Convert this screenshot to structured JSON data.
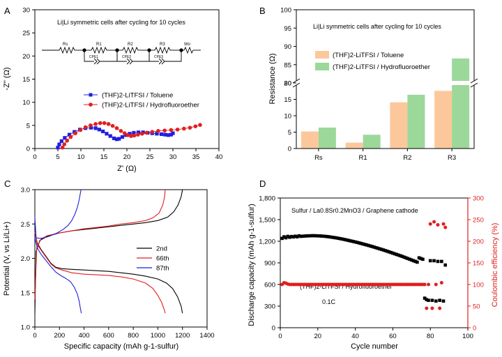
{
  "panels": {
    "A": {
      "letter": "A",
      "note": "Li|Li symmetric cells after cycling for 10 cycles",
      "circuit": {
        "labels": [
          "Rs",
          "R1",
          "CPE1",
          "R2",
          "CPE2",
          "R3",
          "CPE3",
          "Wo"
        ]
      }
    },
    "B": {
      "letter": "B",
      "note": "Li|Li symmetric cells after cycling for 10 cycles"
    },
    "C": {
      "letter": "C"
    },
    "D": {
      "letter": "D",
      "note": "Sulfur / La0.8Sr0.2MnO3 / Graphene cathode",
      "note2": "(THF)2-LiTFSI / Hydrofluoroether",
      "note3": "0.1C"
    }
  },
  "chart_data": [
    {
      "type": "scatter",
      "panel": "A",
      "xlabel": "Z' (Ω)",
      "ylabel": "-Z'' (Ω)",
      "xlim": [
        0,
        40
      ],
      "ylim": [
        0,
        30
      ],
      "xticks": [
        0,
        5,
        10,
        15,
        20,
        25,
        30,
        35,
        40
      ],
      "yticks": [
        0,
        5,
        10,
        15,
        20,
        25,
        30
      ],
      "legend_position": "center-left",
      "series": [
        {
          "name": "(THF)2-LiTFSI / Toluene",
          "color": "#1f1fe0",
          "marker": "square",
          "x": [
            5.0,
            5.3,
            5.8,
            6.5,
            7.5,
            8.6,
            9.8,
            11.0,
            12.2,
            13.2,
            14.0,
            14.8,
            15.6,
            16.4,
            17.2,
            17.8,
            18.3,
            19.0,
            19.8,
            20.6,
            21.5,
            22.5,
            23.5,
            24.5,
            25.5,
            26.5,
            27.5,
            28.3,
            29.0,
            29.6,
            30.0
          ],
          "y": [
            0.2,
            0.9,
            1.6,
            2.3,
            3.0,
            3.6,
            4.1,
            4.4,
            4.5,
            4.4,
            4.1,
            3.7,
            3.2,
            2.7,
            2.2,
            2.0,
            2.1,
            2.5,
            2.9,
            3.2,
            3.4,
            3.5,
            3.5,
            3.4,
            3.3,
            3.2,
            3.1,
            3.0,
            2.9,
            3.0,
            3.3
          ]
        },
        {
          "name": "(THF)2-LiTFSI / Hydrofluoroether",
          "color": "#e01f1f",
          "marker": "circle",
          "x": [
            6.0,
            6.4,
            7.0,
            7.8,
            8.8,
            9.9,
            11.0,
            12.1,
            13.2,
            14.2,
            15.1,
            16.0,
            16.9,
            17.8,
            18.7,
            19.5,
            20.2,
            20.9,
            21.6,
            22.4,
            23.3,
            24.3,
            25.5,
            26.8,
            28.2,
            29.6,
            31.0,
            32.4,
            33.7,
            34.9,
            35.9
          ],
          "y": [
            0.2,
            0.9,
            1.7,
            2.5,
            3.3,
            4.0,
            4.6,
            5.0,
            5.3,
            5.5,
            5.5,
            5.3,
            4.9,
            4.4,
            3.8,
            3.3,
            2.9,
            2.7,
            2.8,
            3.0,
            3.2,
            3.4,
            3.6,
            3.8,
            3.9,
            4.0,
            4.1,
            4.3,
            4.5,
            4.8,
            5.1
          ]
        }
      ]
    },
    {
      "type": "bar",
      "panel": "B",
      "xlabel": "",
      "ylabel": "Resistance (Ω)",
      "y_broken_axis": {
        "lower": [
          0,
          20
        ],
        "upper": [
          80,
          100
        ]
      },
      "yticks_lower": [
        0,
        5,
        10,
        15,
        20
      ],
      "yticks_upper": [
        80,
        85,
        90,
        95,
        100
      ],
      "categories": [
        "Rs",
        "R1",
        "R2",
        "R3"
      ],
      "legend_position": "top-left",
      "series": [
        {
          "name": "(THF)2-LiTFSI / Toluene",
          "color": "#fcc89b",
          "values": [
            5.2,
            1.8,
            14.1,
            17.6
          ]
        },
        {
          "name": "(THF)2-LiTFSI / Hydrofluoroether",
          "color": "#9cd89a",
          "values": [
            6.4,
            4.2,
            16.4,
            86.7
          ]
        }
      ]
    },
    {
      "type": "line",
      "panel": "C",
      "xlabel": "Specific capacity (mAh g-1-sulfur)",
      "ylabel": "Potential (V, vs Li/Li+)",
      "xlim": [
        0,
        1400
      ],
      "ylim": [
        1.0,
        3.0
      ],
      "xticks": [
        0,
        200,
        400,
        600,
        800,
        1000,
        1200,
        1400
      ],
      "yticks": [
        1.0,
        1.5,
        2.0,
        2.5,
        3.0
      ],
      "legend_position": "center-right",
      "series": [
        {
          "name": "2nd",
          "color": "#000000",
          "charge": {
            "x": [
              0,
              10,
              40,
              100,
              200,
              300,
              400,
              500,
              600,
              700,
              800,
              900,
              1000,
              1080,
              1130,
              1165,
              1190,
              1200
            ],
            "y": [
              1.2,
              2.1,
              2.26,
              2.32,
              2.37,
              2.4,
              2.42,
              2.44,
              2.46,
              2.48,
              2.5,
              2.52,
              2.55,
              2.6,
              2.68,
              2.78,
              2.9,
              3.0
            ]
          },
          "discharge": {
            "x": [
              0,
              20,
              50,
              90,
              130,
              170,
              220,
              300,
              400,
              500,
              600,
              700,
              800,
              900,
              1000,
              1070,
              1120,
              1160,
              1190,
              1200
            ],
            "y": [
              2.38,
              2.22,
              2.13,
              2.03,
              1.93,
              1.87,
              1.85,
              1.84,
              1.83,
              1.82,
              1.81,
              1.79,
              1.77,
              1.74,
              1.7,
              1.64,
              1.56,
              1.44,
              1.3,
              1.2
            ]
          }
        },
        {
          "name": "66th",
          "color": "#e01f1f",
          "charge": {
            "x": [
              0,
              15,
              50,
              100,
              200,
              300,
              400,
              500,
              600,
              700,
              800,
              900,
              960,
              1010,
              1040,
              1055,
              1060
            ],
            "y": [
              1.4,
              2.15,
              2.28,
              2.33,
              2.37,
              2.4,
              2.43,
              2.45,
              2.47,
              2.5,
              2.52,
              2.55,
              2.59,
              2.66,
              2.78,
              2.9,
              3.0
            ]
          },
          "discharge": {
            "x": [
              0,
              20,
              50,
              90,
              130,
              170,
              220,
              300,
              400,
              500,
              600,
              700,
              800,
              900,
              960,
              1000,
              1030,
              1050,
              1060
            ],
            "y": [
              2.38,
              2.2,
              2.12,
              2.02,
              1.92,
              1.86,
              1.83,
              1.79,
              1.77,
              1.76,
              1.75,
              1.73,
              1.7,
              1.64,
              1.56,
              1.46,
              1.36,
              1.26,
              1.2
            ]
          }
        },
        {
          "name": "87th",
          "color": "#1f1fe0",
          "charge": {
            "x": [
              0,
              10,
              40,
              80,
              130,
              180,
              230,
              270,
              300,
              325,
              345,
              360,
              370,
              375
            ],
            "y": [
              2.6,
              2.3,
              2.29,
              2.3,
              2.33,
              2.37,
              2.42,
              2.48,
              2.55,
              2.64,
              2.74,
              2.85,
              2.95,
              3.0
            ]
          },
          "discharge": {
            "x": [
              0,
              20,
              50,
              90,
              130,
              170,
              210,
              250,
              290,
              320,
              345,
              360,
              370,
              378
            ],
            "y": [
              2.3,
              2.15,
              2.06,
              1.97,
              1.88,
              1.8,
              1.75,
              1.71,
              1.66,
              1.58,
              1.48,
              1.38,
              1.27,
              1.2
            ]
          }
        }
      ]
    },
    {
      "type": "scatter",
      "panel": "D",
      "xlabel": "Cycle number",
      "ylabel": "Discharge capacity (mAh g-1-sulfur)",
      "y2label": "Coulombic efficiency (%)",
      "xlim": [
        0,
        100
      ],
      "ylim": [
        0,
        1800
      ],
      "y2lim": [
        0,
        300
      ],
      "xticks": [
        0,
        20,
        40,
        60,
        80,
        100
      ],
      "yticks": [
        0,
        300,
        600,
        900,
        1200,
        1500,
        1800
      ],
      "y2ticks": [
        0,
        50,
        100,
        150,
        200,
        250,
        300
      ],
      "series": [
        {
          "name": "Discharge capacity",
          "color": "#000000",
          "marker": "square",
          "axis": "left",
          "x": [
            1,
            2,
            3,
            4,
            5,
            6,
            7,
            8,
            9,
            10,
            11,
            12,
            13,
            14,
            15,
            16,
            17,
            18,
            19,
            20,
            21,
            22,
            23,
            24,
            25,
            26,
            27,
            28,
            29,
            30,
            31,
            32,
            33,
            34,
            35,
            36,
            37,
            38,
            39,
            40,
            41,
            42,
            43,
            44,
            45,
            46,
            47,
            48,
            49,
            50,
            51,
            52,
            53,
            54,
            55,
            56,
            57,
            58,
            59,
            60,
            61,
            62,
            63,
            64,
            65,
            66,
            67,
            68,
            69,
            70,
            71,
            72,
            73,
            74,
            75,
            76,
            77,
            78,
            79,
            80,
            81,
            82,
            83,
            84,
            85,
            86,
            87,
            88
          ],
          "y": [
            1240,
            1262,
            1248,
            1268,
            1255,
            1266,
            1260,
            1270,
            1262,
            1275,
            1268,
            1270,
            1272,
            1274,
            1275,
            1276,
            1277,
            1277,
            1276,
            1275,
            1274,
            1272,
            1270,
            1268,
            1265,
            1262,
            1258,
            1254,
            1250,
            1246,
            1241,
            1236,
            1231,
            1226,
            1220,
            1214,
            1208,
            1202,
            1196,
            1190,
            1184,
            1177,
            1170,
            1163,
            1156,
            1149,
            1142,
            1134,
            1127,
            1119,
            1111,
            1103,
            1095,
            1087,
            1079,
            1070,
            1062,
            1053,
            1044,
            1035,
            1026,
            1017,
            1008,
            999,
            990,
            980,
            970,
            960,
            950,
            940,
            930,
            920,
            910,
            970,
            960,
            950,
            410,
            390,
            380,
            930,
            380,
            930,
            370,
            920,
            380,
            920,
            370,
            870
          ]
        },
        {
          "name": "Coulombic efficiency",
          "color": "#e01f1f",
          "marker": "circle",
          "axis": "right",
          "x": [
            1,
            2,
            3,
            4,
            5,
            6,
            7,
            8,
            9,
            10,
            11,
            12,
            13,
            14,
            15,
            16,
            17,
            18,
            19,
            20,
            21,
            22,
            23,
            24,
            25,
            26,
            27,
            28,
            29,
            30,
            31,
            32,
            33,
            34,
            35,
            36,
            37,
            38,
            39,
            40,
            41,
            42,
            43,
            44,
            45,
            46,
            47,
            48,
            49,
            50,
            51,
            52,
            53,
            54,
            55,
            56,
            57,
            58,
            59,
            60,
            61,
            62,
            63,
            64,
            65,
            66,
            67,
            68,
            69,
            70,
            71,
            72,
            73,
            74,
            75,
            76,
            77,
            78,
            79,
            80,
            81,
            82,
            83,
            84,
            85,
            86,
            87,
            88
          ],
          "y": [
            100,
            104,
            103,
            101,
            100,
            100,
            100,
            100,
            100,
            100,
            100,
            100,
            100,
            100,
            100,
            100,
            100,
            100,
            100,
            100,
            100,
            100,
            100,
            100,
            100,
            100,
            100,
            100,
            100,
            100,
            100,
            100,
            100,
            100,
            100,
            100,
            100,
            100,
            100,
            100,
            100,
            100,
            100,
            100,
            100,
            100,
            100,
            100,
            100,
            100,
            100,
            100,
            100,
            100,
            100,
            100,
            100,
            100,
            100,
            100,
            100,
            100,
            100,
            100,
            100,
            100,
            100,
            100,
            100,
            100,
            100,
            100,
            100,
            100,
            100,
            100,
            100,
            45,
            100,
            240,
            45,
            245,
            100,
            238,
            45,
            104,
            240,
            232
          ]
        }
      ]
    }
  ]
}
